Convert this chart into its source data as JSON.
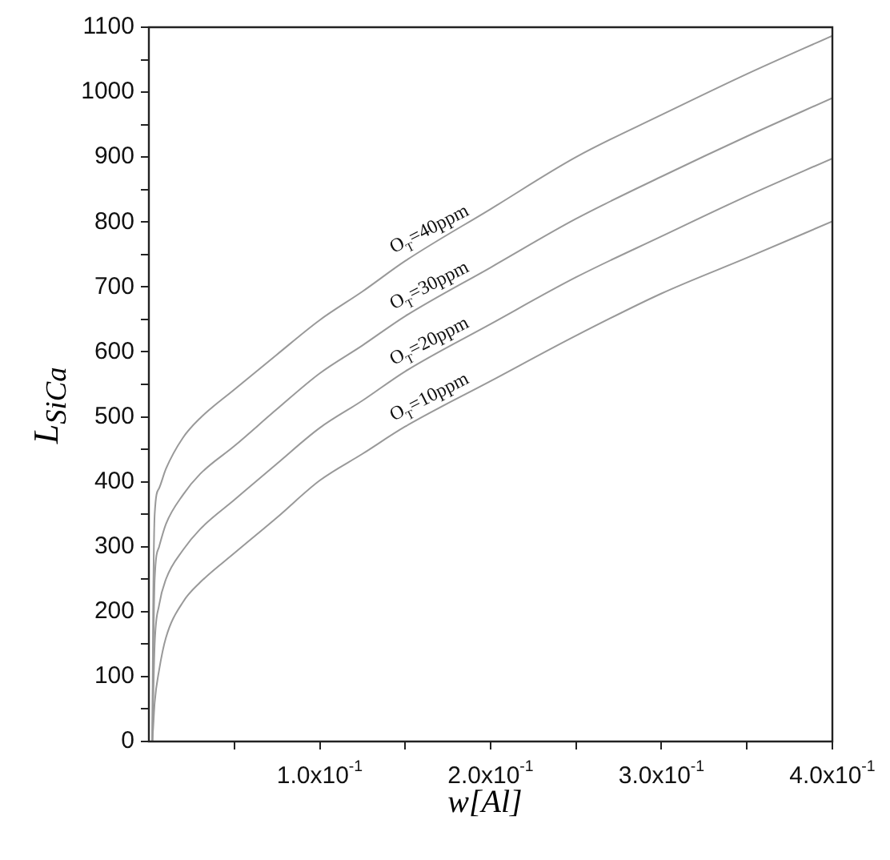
{
  "chart_data": {
    "type": "line",
    "xlabel": "w[Al]",
    "ylabel": "L$_{SiCa}$",
    "x": [
      0.002,
      0.0025,
      0.0034,
      0.006,
      0.01,
      0.02,
      0.03,
      0.05,
      0.075,
      0.1,
      0.125,
      0.15,
      0.2,
      0.25,
      0.3,
      0.35,
      0.4
    ],
    "series": [
      {
        "color": "#999999",
        "values": [
          0,
          200,
          350,
          390,
          420,
          468,
          498,
          542,
          596,
          649,
          693,
          740,
          820,
          900,
          965,
          1028,
          1087
        ]
      },
      {
        "color": "#999999",
        "values": [
          0,
          120,
          250,
          300,
          335,
          380,
          412,
          455,
          512,
          567,
          610,
          655,
          730,
          805,
          870,
          932,
          991
        ]
      },
      {
        "color": "#999999",
        "values": [
          0,
          60,
          150,
          210,
          250,
          295,
          327,
          372,
          428,
          483,
          525,
          570,
          643,
          715,
          778,
          840,
          898
        ]
      },
      {
        "color": "#999999",
        "values": [
          0,
          20,
          60,
          110,
          160,
          215,
          245,
          290,
          345,
          402,
          443,
          485,
          555,
          625,
          690,
          745,
          801
        ]
      }
    ],
    "xlim": [
      0,
      0.4
    ],
    "xticks": [
      {
        "value": 0.05,
        "label": null
      },
      {
        "value": 0.1,
        "label": "1.0x10$^{-1}$"
      },
      {
        "value": 0.15,
        "label": null
      },
      {
        "value": 0.2,
        "label": "2.0x10$^{-1}$"
      },
      {
        "value": 0.25,
        "label": null
      },
      {
        "value": 0.3,
        "label": "3.0x10$^{-1}$"
      },
      {
        "value": 0.35,
        "label": null
      },
      {
        "value": 0.4,
        "label": "4.0x10$^{-1}$"
      }
    ],
    "ylim": [
      0,
      1100
    ],
    "yticks": [
      0,
      {
        "value": 50,
        "label": null
      },
      100,
      {
        "value": 150,
        "label": null
      },
      200,
      {
        "value": 250,
        "label": null
      },
      300,
      {
        "value": 350,
        "label": null
      },
      400,
      {
        "value": 450,
        "label": null
      },
      500,
      {
        "value": 550,
        "label": null
      },
      600,
      {
        "value": 650,
        "label": null
      },
      700,
      {
        "value": 750,
        "label": null
      },
      800,
      {
        "value": 850,
        "label": null
      },
      900,
      {
        "value": 950,
        "label": null
      },
      1000,
      {
        "value": 1050,
        "label": null
      },
      1100
    ],
    "grid": false,
    "legend": false,
    "marker": "none",
    "line_style": "solid",
    "annotations": [
      "O$_{T}$=40ppm",
      "O$_{T}$=30ppm",
      "O$_{T}$=20ppm",
      "O$_{T}$=10ppm"
    ]
  }
}
